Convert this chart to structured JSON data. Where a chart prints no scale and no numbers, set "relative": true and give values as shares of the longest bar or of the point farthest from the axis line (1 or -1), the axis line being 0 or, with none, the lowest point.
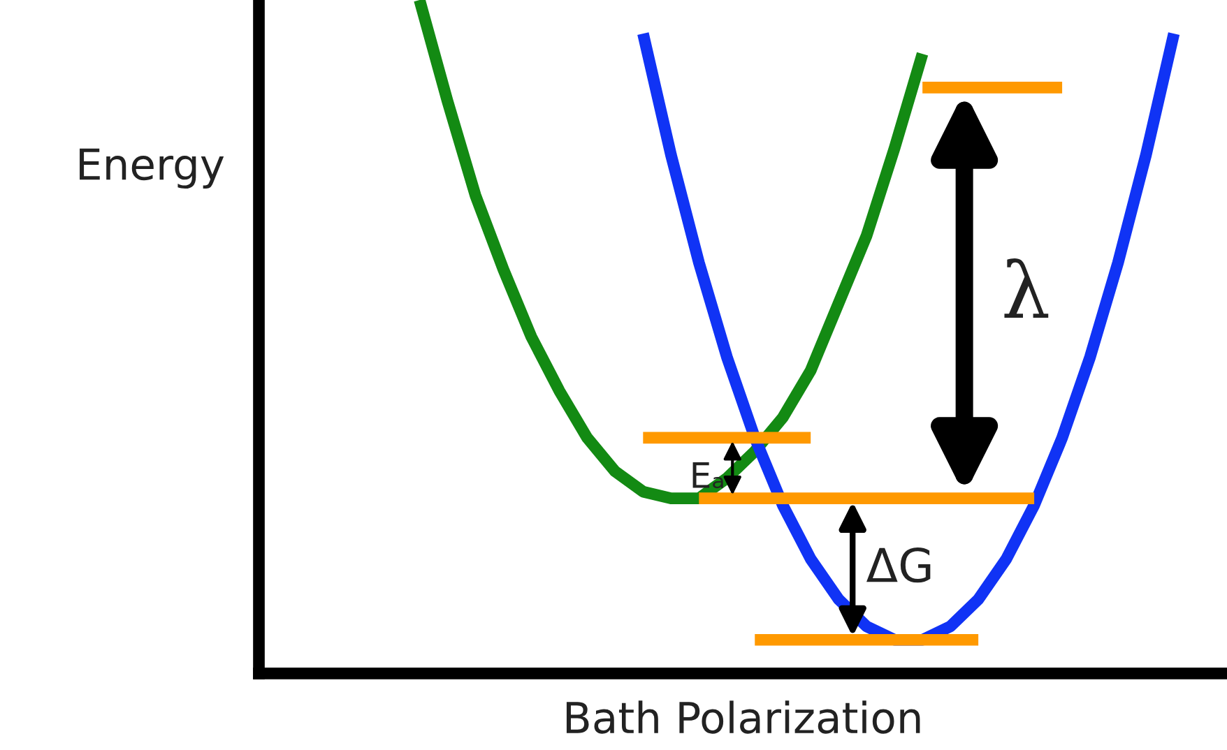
{
  "chart_data": {
    "type": "line",
    "relative": true,
    "xlabel": "Bath Polarization",
    "ylabel": "Energy",
    "marker": "none",
    "line_style": "solid",
    "categories": [
      null,
      null,
      null,
      null,
      null,
      null,
      null,
      null,
      null,
      null,
      null,
      null,
      null,
      null,
      null,
      null,
      null,
      null,
      null,
      null,
      null,
      null,
      null,
      null,
      null,
      null,
      null,
      null
    ],
    "series": [
      {
        "color": "#138a13",
        "values": [
          1.0,
          0.85,
          0.71,
          0.6,
          0.5,
          0.42,
          0.35,
          0.3,
          0.27,
          0.26,
          0.26,
          0.29,
          0.33,
          0.38,
          0.45,
          0.55,
          0.65,
          0.78,
          0.92,
          null,
          null,
          null,
          null,
          null,
          null,
          null,
          null,
          null
        ]
      },
      {
        "color": "#1033f5",
        "values": [
          null,
          null,
          null,
          null,
          null,
          null,
          null,
          null,
          0.95,
          0.77,
          0.61,
          0.47,
          0.35,
          0.25,
          0.17,
          0.11,
          0.07,
          0.05,
          0.05,
          0.07,
          0.11,
          0.17,
          0.25,
          0.35,
          0.47,
          0.61,
          0.77,
          0.95
        ]
      },
      {
        "color": "#ff9900",
        "values": [
          null,
          null,
          null,
          null,
          null,
          null,
          null,
          null,
          null,
          null,
          null,
          null,
          null,
          null,
          null,
          null,
          null,
          null,
          0.87,
          0.87,
          0.87,
          0.87,
          0.87,
          0.87,
          null,
          null,
          null,
          null
        ]
      },
      {
        "color": "#ff9900",
        "values": [
          null,
          null,
          null,
          null,
          null,
          null,
          null,
          null,
          null,
          null,
          0.26,
          0.26,
          0.26,
          0.26,
          0.26,
          0.26,
          0.26,
          0.26,
          0.26,
          0.26,
          0.26,
          0.26,
          0.26,
          null,
          null,
          null,
          null,
          null
        ]
      },
      {
        "color": "#ff9900",
        "values": [
          null,
          null,
          null,
          null,
          null,
          null,
          null,
          null,
          0.35,
          0.35,
          0.35,
          0.35,
          0.35,
          0.35,
          0.35,
          null,
          null,
          null,
          null,
          null,
          null,
          null,
          null,
          null,
          null,
          null,
          null,
          null
        ]
      },
      {
        "color": "#ff9900",
        "values": [
          null,
          null,
          null,
          null,
          null,
          null,
          null,
          null,
          null,
          null,
          null,
          null,
          0.05,
          0.05,
          0.05,
          0.05,
          0.05,
          0.05,
          0.05,
          0.05,
          0.05,
          null,
          null,
          null,
          null,
          null,
          null,
          null
        ]
      }
    ],
    "annotations": [
      "Eₐ",
      "ΔG",
      "λ"
    ]
  }
}
